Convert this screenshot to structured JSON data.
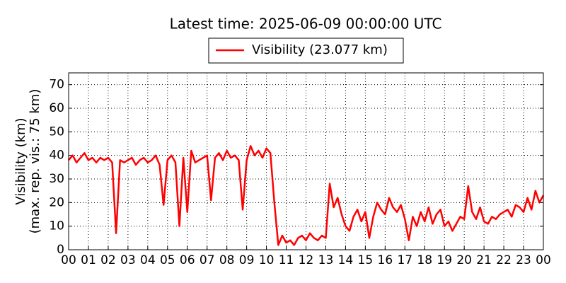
{
  "chart_data": {
    "type": "line",
    "title": "Latest time: 2025-06-09 00:00:00 UTC",
    "ylabel": [
      "Visibility (km)",
      "(max. rep. vis.: 75 km)"
    ],
    "x": [
      0,
      0.2,
      0.4,
      0.6,
      0.8,
      1.0,
      1.2,
      1.4,
      1.6,
      1.8,
      2.0,
      2.2,
      2.4,
      2.6,
      2.8,
      3.0,
      3.2,
      3.4,
      3.6,
      3.8,
      4.0,
      4.2,
      4.4,
      4.6,
      4.8,
      5.0,
      5.2,
      5.4,
      5.6,
      5.8,
      6.0,
      6.2,
      6.4,
      6.6,
      6.8,
      7.0,
      7.2,
      7.4,
      7.6,
      7.8,
      8.0,
      8.2,
      8.4,
      8.6,
      8.8,
      9.0,
      9.2,
      9.4,
      9.6,
      9.8,
      10.0,
      10.2,
      10.4,
      10.6,
      10.8,
      11.0,
      11.2,
      11.4,
      11.6,
      11.8,
      12.0,
      12.2,
      12.4,
      12.6,
      12.8,
      13.0,
      13.2,
      13.4,
      13.6,
      13.8,
      14.0,
      14.2,
      14.4,
      14.6,
      14.8,
      15.0,
      15.2,
      15.4,
      15.6,
      15.8,
      16.0,
      16.2,
      16.4,
      16.6,
      16.8,
      17.0,
      17.2,
      17.4,
      17.6,
      17.8,
      18.0,
      18.2,
      18.4,
      18.6,
      18.8,
      19.0,
      19.2,
      19.4,
      19.6,
      19.8,
      20.0,
      20.2,
      20.4,
      20.6,
      20.8,
      21.0,
      21.2,
      21.4,
      21.6,
      21.8,
      22.0,
      22.2,
      22.4,
      22.6,
      22.8,
      23.0,
      23.2,
      23.4,
      23.6,
      23.8,
      24.0
    ],
    "series": [
      {
        "name": "Visibility (23.077 km)",
        "color": "#ff0000",
        "values": [
          38,
          40,
          37,
          39,
          41,
          38,
          39,
          37,
          39,
          38,
          39,
          37,
          7,
          38,
          37,
          38,
          39,
          36,
          38,
          39,
          37,
          38,
          40,
          36,
          19,
          38,
          40,
          37,
          10,
          39,
          16,
          42,
          37,
          38,
          39,
          40,
          21,
          39,
          41,
          38,
          42,
          39,
          40,
          38,
          17,
          38,
          44,
          40,
          42,
          39,
          43,
          41,
          20,
          2,
          6,
          3,
          4,
          2,
          5,
          6,
          4,
          7,
          5,
          4,
          6,
          5,
          28,
          18,
          22,
          15,
          10,
          8,
          14,
          17,
          12,
          16,
          5,
          14,
          20,
          17,
          15,
          22,
          18,
          16,
          19,
          13,
          4,
          14,
          10,
          16,
          12,
          18,
          11,
          15,
          17,
          10,
          12,
          8,
          11,
          14,
          13,
          27,
          16,
          13,
          18,
          12,
          11,
          14,
          13,
          15,
          16,
          17,
          14,
          19,
          18,
          16,
          22,
          17,
          25,
          20,
          23.077
        ]
      }
    ],
    "xlim": [
      0,
      24
    ],
    "xticks": [
      {
        "value": 0,
        "label": "00"
      },
      {
        "value": 1,
        "label": "01"
      },
      {
        "value": 2,
        "label": "02"
      },
      {
        "value": 3,
        "label": "03"
      },
      {
        "value": 4,
        "label": "04"
      },
      {
        "value": 5,
        "label": "05"
      },
      {
        "value": 6,
        "label": "06"
      },
      {
        "value": 7,
        "label": "07"
      },
      {
        "value": 8,
        "label": "08"
      },
      {
        "value": 9,
        "label": "09"
      },
      {
        "value": 10,
        "label": "10"
      },
      {
        "value": 11,
        "label": "11"
      },
      {
        "value": 12,
        "label": "12"
      },
      {
        "value": 13,
        "label": "13"
      },
      {
        "value": 14,
        "label": "14"
      },
      {
        "value": 15,
        "label": "15"
      },
      {
        "value": 16,
        "label": "16"
      },
      {
        "value": 17,
        "label": "17"
      },
      {
        "value": 18,
        "label": "18"
      },
      {
        "value": 19,
        "label": "19"
      },
      {
        "value": 20,
        "label": "20"
      },
      {
        "value": 21,
        "label": "21"
      },
      {
        "value": 22,
        "label": "22"
      },
      {
        "value": 23,
        "label": "23"
      },
      {
        "value": 24,
        "label": "00"
      }
    ],
    "ylim": [
      0,
      75
    ],
    "yticks": [
      0,
      10,
      20,
      30,
      40,
      50,
      60,
      70
    ],
    "grid": true,
    "legend": "top"
  }
}
